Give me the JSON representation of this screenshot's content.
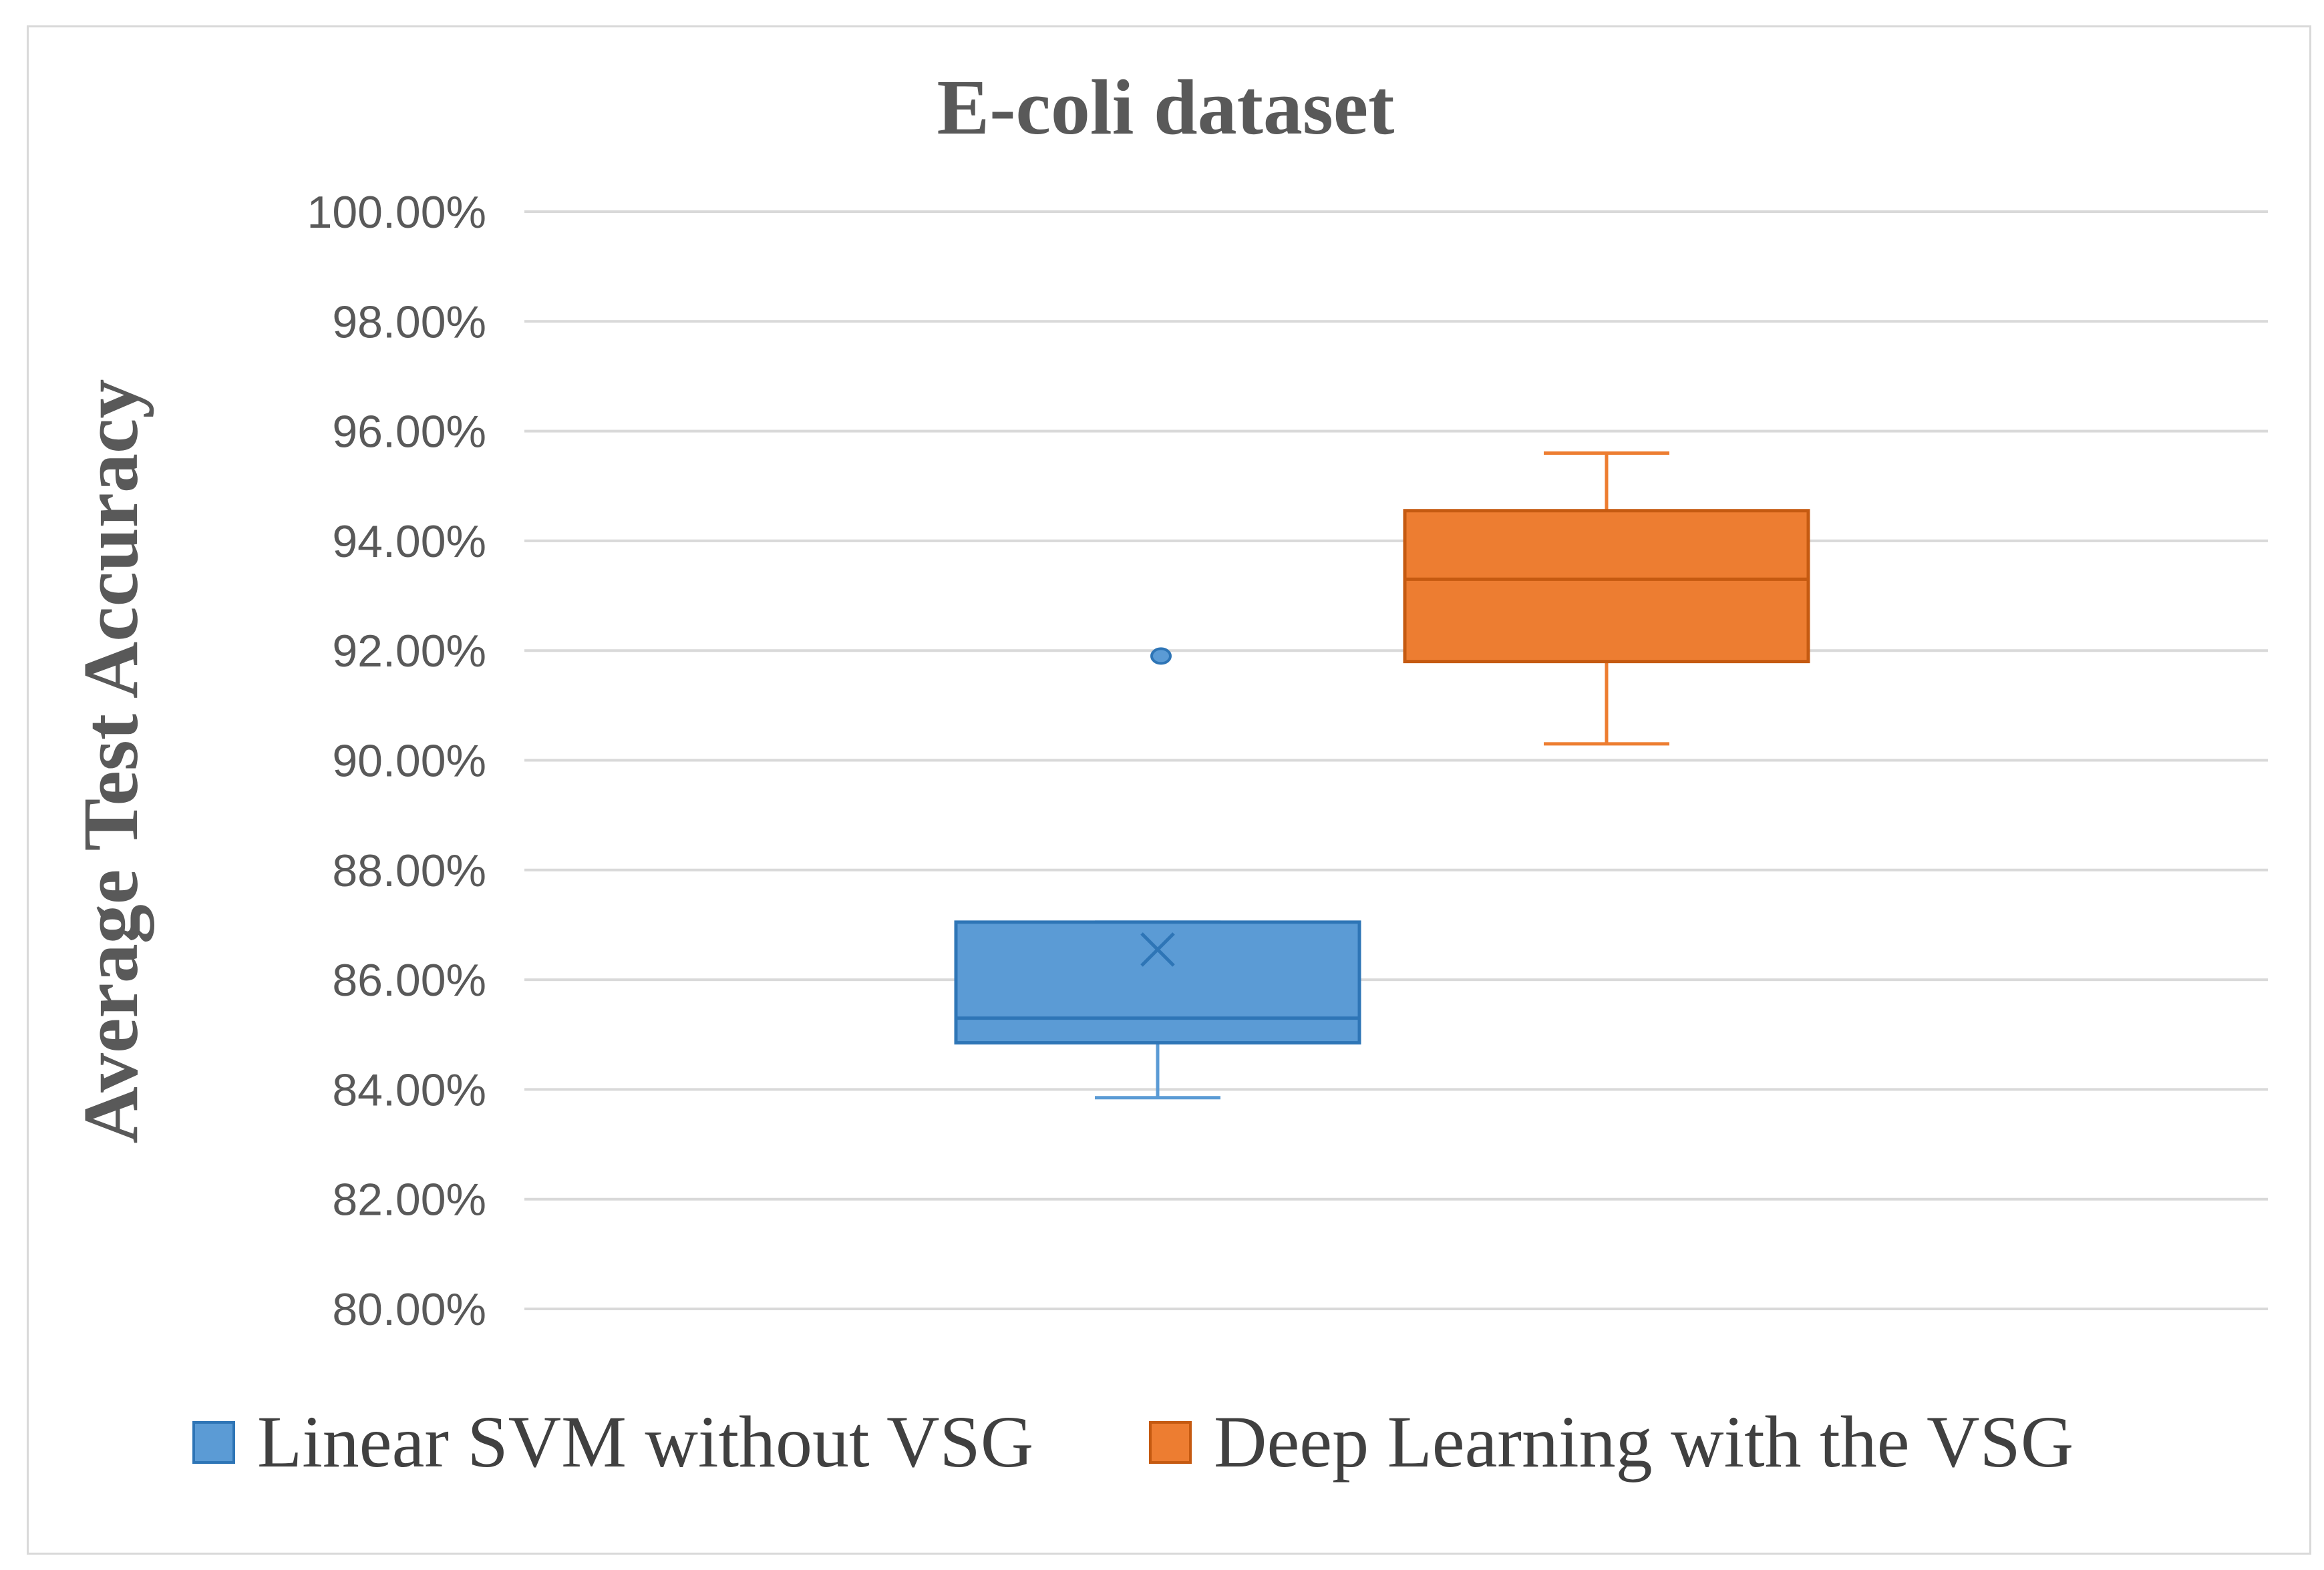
{
  "chart_data": {
    "type": "box",
    "title": "E-coli dataset",
    "xlabel": "",
    "ylabel": "Average Test Accuracy",
    "ylim": [
      80,
      100
    ],
    "ytick_step": 2,
    "ytick_labels": [
      "80.00%",
      "82.00%",
      "84.00%",
      "86.00%",
      "88.00%",
      "90.00%",
      "92.00%",
      "94.00%",
      "96.00%",
      "98.00%",
      "100.00%"
    ],
    "grid": true,
    "legend_position": "bottom",
    "series": [
      {
        "name": "Linear SVM without VSG",
        "color": "#5b9bd5",
        "stroke": "#2e75b6",
        "min": 83.85,
        "q1": 84.85,
        "median": 85.3,
        "q3": 87.05,
        "max": 87.05,
        "mean": 86.55,
        "outliers": [
          91.9
        ]
      },
      {
        "name": "Deep Learning with the VSG",
        "color": "#ed7d31",
        "stroke": "#c55a11",
        "min": 90.3,
        "q1": 91.8,
        "median": 93.3,
        "q3": 94.55,
        "max": 95.6,
        "mean": null,
        "outliers": []
      }
    ]
  }
}
